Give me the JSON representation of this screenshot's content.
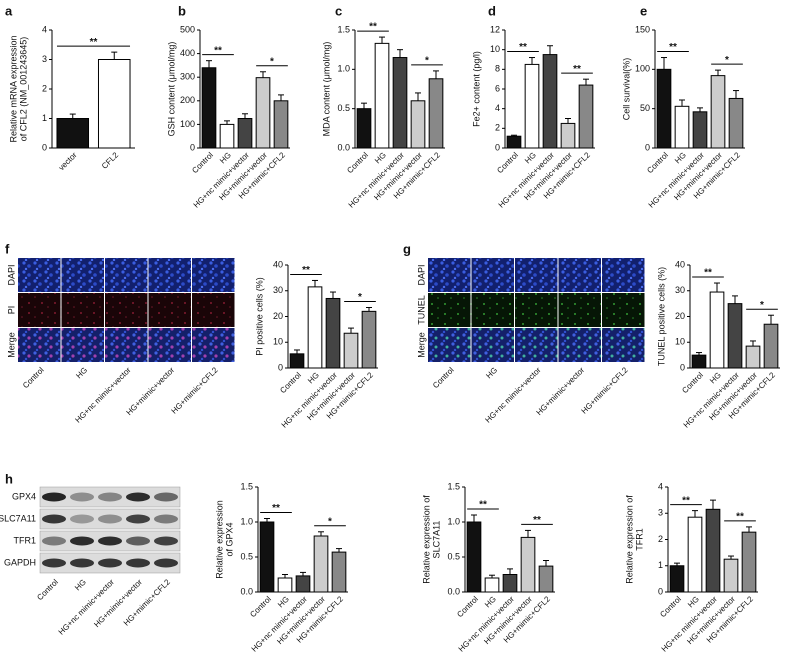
{
  "chart_data": [
    {
      "type": "bar",
      "panel": "a",
      "ylabel": [
        "Relative mRNA expression",
        "of CFL2 (NM_001243645)"
      ],
      "categories": [
        "vector",
        "CFL2"
      ],
      "values": [
        1.0,
        3.0
      ],
      "errors": [
        0.15,
        0.25
      ],
      "colors": [
        "#111111",
        "#ffffff"
      ],
      "ylim": [
        0,
        4
      ],
      "yticks": [
        0,
        1,
        2,
        3,
        4
      ],
      "annotations": [
        {
          "text": "**",
          "between": [
            "vector",
            "CFL2"
          ]
        }
      ]
    },
    {
      "type": "bar",
      "panel": "b",
      "ylabel": [
        "GSH content (μmol/mg)"
      ],
      "categories": [
        "Control",
        "HG",
        "HG+nc mimic+vector",
        "HG+mimic+vector",
        "HG+mimic+CFL2"
      ],
      "values": [
        340,
        100,
        125,
        298,
        200
      ],
      "errors": [
        30,
        15,
        20,
        25,
        25
      ],
      "colors": [
        "#111111",
        "#ffffff",
        "#444444",
        "#cccccc",
        "#888888"
      ],
      "ylim": [
        0,
        500
      ],
      "yticks": [
        0,
        100,
        200,
        300,
        400,
        500
      ],
      "annotations": [
        {
          "text": "**",
          "between": [
            "Control",
            "HG"
          ]
        },
        {
          "text": "*",
          "between": [
            "HG+mimic+vector",
            "HG+mimic+CFL2"
          ]
        }
      ]
    },
    {
      "type": "bar",
      "panel": "c",
      "ylabel": [
        "MDA content (μmol/mg)"
      ],
      "categories": [
        "Control",
        "HG",
        "HG+nc mimic+vector",
        "HG+mimic+vector",
        "HG+mimic+CFL2"
      ],
      "values": [
        0.5,
        1.33,
        1.15,
        0.6,
        0.88
      ],
      "errors": [
        0.07,
        0.08,
        0.1,
        0.1,
        0.1
      ],
      "colors": [
        "#111111",
        "#ffffff",
        "#444444",
        "#cccccc",
        "#888888"
      ],
      "ylim": [
        0,
        1.5
      ],
      "yticks": [
        {
          "value": 0,
          "label": "0.0"
        },
        0.5,
        {
          "value": 1,
          "label": "1.0"
        },
        1.5
      ],
      "annotations": [
        {
          "text": "**",
          "between": [
            "Control",
            "HG"
          ]
        },
        {
          "text": "*",
          "between": [
            "HG+mimic+vector",
            "HG+mimic+CFL2"
          ]
        }
      ]
    },
    {
      "type": "bar",
      "panel": "d",
      "ylabel": [
        "Fe2+ content (pg/l)"
      ],
      "categories": [
        "Control",
        "HG",
        "HG+nc mimic+vector",
        "HG+mimic+vector",
        "HG+mimic+CFL2"
      ],
      "values": [
        1.2,
        8.5,
        9.5,
        2.5,
        6.4
      ],
      "errors": [
        0.1,
        0.7,
        0.9,
        0.5,
        0.6
      ],
      "colors": [
        "#111111",
        "#ffffff",
        "#444444",
        "#cccccc",
        "#888888"
      ],
      "ylim": [
        0,
        12
      ],
      "yticks": [
        0,
        2,
        4,
        6,
        8,
        10,
        12
      ],
      "annotations": [
        {
          "text": "**",
          "between": [
            "Control",
            "HG"
          ]
        },
        {
          "text": "**",
          "between": [
            "HG+mimic+vector",
            "HG+mimic+CFL2"
          ]
        }
      ]
    },
    {
      "type": "bar",
      "panel": "e",
      "ylabel": [
        "Cell survival(%)"
      ],
      "categories": [
        "Control",
        "HG",
        "HG+nc mimic+vector",
        "HG+mimic+vector",
        "HG+mimic+CFL2"
      ],
      "values": [
        100,
        53,
        46,
        92,
        63
      ],
      "errors": [
        15,
        8,
        5,
        7,
        10
      ],
      "colors": [
        "#111111",
        "#ffffff",
        "#444444",
        "#cccccc",
        "#888888"
      ],
      "ylim": [
        0,
        150
      ],
      "yticks": [
        0,
        50,
        100,
        150
      ],
      "annotations": [
        {
          "text": "**",
          "between": [
            "Control",
            "HG"
          ]
        },
        {
          "text": "*",
          "between": [
            "HG+mimic+vector",
            "HG+mimic+CFL2"
          ]
        }
      ]
    },
    {
      "type": "bar",
      "ylabel": [
        "PI positive cells (%)"
      ],
      "categories": [
        "Control",
        "HG",
        "HG+nc mimic+vector",
        "HG+mimic+vector",
        "HG+mimic+CFL2"
      ],
      "values": [
        5.5,
        31.5,
        27,
        13.5,
        22
      ],
      "errors": [
        1.5,
        2.5,
        2.5,
        2,
        1.5
      ],
      "colors": [
        "#111111",
        "#ffffff",
        "#444444",
        "#cccccc",
        "#888888"
      ],
      "ylim": [
        0,
        40
      ],
      "yticks": [
        0,
        10,
        20,
        30,
        40
      ],
      "annotations": [
        {
          "text": "**",
          "between": [
            "Control",
            "HG"
          ]
        },
        {
          "text": "*",
          "between": [
            "HG+mimic+vector",
            "HG+mimic+CFL2"
          ]
        }
      ]
    },
    {
      "type": "bar",
      "ylabel": [
        "TUNEL positive cells (%)"
      ],
      "categories": [
        "Control",
        "HG",
        "HG+nc mimic+vector",
        "HG+mimic+vector",
        "HG+mimic+CFL2"
      ],
      "values": [
        5,
        29.5,
        25,
        8.5,
        17
      ],
      "errors": [
        1,
        3.5,
        3,
        2,
        3.5
      ],
      "colors": [
        "#111111",
        "#ffffff",
        "#444444",
        "#cccccc",
        "#888888"
      ],
      "ylim": [
        0,
        40
      ],
      "yticks": [
        0,
        10,
        20,
        30,
        40
      ],
      "annotations": [
        {
          "text": "**",
          "between": [
            "Control",
            "HG"
          ]
        },
        {
          "text": "*",
          "between": [
            "HG+mimic+vector",
            "HG+mimic+CFL2"
          ]
        }
      ]
    },
    {
      "type": "bar",
      "ylabel": [
        "Relative expression",
        "of GPX4"
      ],
      "categories": [
        "Control",
        "HG",
        "HG+nc mimic+vector",
        "HG+mimic+vector",
        "HG+mimic+CFL2"
      ],
      "values": [
        1.0,
        0.2,
        0.23,
        0.8,
        0.57
      ],
      "errors": [
        0.05,
        0.05,
        0.05,
        0.06,
        0.05
      ],
      "colors": [
        "#111111",
        "#ffffff",
        "#444444",
        "#cccccc",
        "#888888"
      ],
      "ylim": [
        0,
        1.5
      ],
      "yticks": [
        {
          "value": 0,
          "label": "0.0"
        },
        0.5,
        {
          "value": 1,
          "label": "1.0"
        },
        1.5
      ],
      "annotations": [
        {
          "text": "**",
          "between": [
            "Control",
            "HG"
          ]
        },
        {
          "text": "*",
          "between": [
            "HG+mimic+vector",
            "HG+mimic+CFL2"
          ]
        }
      ]
    },
    {
      "type": "bar",
      "ylabel": [
        "Relative expression of",
        "SLC7A11"
      ],
      "categories": [
        "Control",
        "HG",
        "HG+nc mimic+vector",
        "HG+mimic+vector",
        "HG+mimic+CFL2"
      ],
      "values": [
        1.0,
        0.2,
        0.25,
        0.78,
        0.37
      ],
      "errors": [
        0.1,
        0.04,
        0.08,
        0.1,
        0.08
      ],
      "colors": [
        "#111111",
        "#ffffff",
        "#444444",
        "#cccccc",
        "#888888"
      ],
      "ylim": [
        0,
        1.5
      ],
      "yticks": [
        {
          "value": 0,
          "label": "0.0"
        },
        0.5,
        {
          "value": 1,
          "label": "1.0"
        },
        1.5
      ],
      "annotations": [
        {
          "text": "**",
          "between": [
            "Control",
            "HG"
          ]
        },
        {
          "text": "**",
          "between": [
            "HG+mimic+vector",
            "HG+mimic+CFL2"
          ]
        }
      ]
    },
    {
      "type": "bar",
      "ylabel": [
        "Relative expression of",
        "TFR1"
      ],
      "categories": [
        "Control",
        "HG",
        "HG+nc mimic+vector",
        "HG+mimic+vector",
        "HG+mimic+CFL2"
      ],
      "values": [
        1.0,
        2.85,
        3.15,
        1.25,
        2.28
      ],
      "errors": [
        0.1,
        0.25,
        0.35,
        0.12,
        0.2
      ],
      "colors": [
        "#111111",
        "#ffffff",
        "#444444",
        "#cccccc",
        "#888888"
      ],
      "ylim": [
        0,
        4
      ],
      "yticks": [
        0,
        1,
        2,
        3,
        4
      ],
      "annotations": [
        {
          "text": "**",
          "between": [
            "Control",
            "HG"
          ]
        },
        {
          "text": "**",
          "between": [
            "HG+mimic+vector",
            "HG+mimic+CFL2"
          ]
        }
      ]
    }
  ],
  "images": [
    {
      "panel": "f",
      "rows": [
        "DAPI",
        "PI",
        "Merge"
      ]
    },
    {
      "panel": "g",
      "rows": [
        "DAPI",
        "TUNEL",
        "Merge"
      ]
    }
  ],
  "blot": {
    "panel": "h",
    "proteins": [
      "GPX4",
      "SLC7A11",
      "TFR1",
      "GAPDH"
    ]
  }
}
